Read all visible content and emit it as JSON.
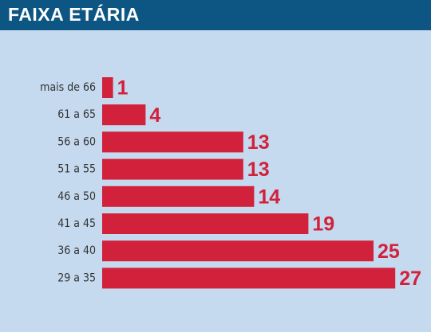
{
  "chart_data": {
    "type": "bar",
    "title": "FAIXA ETÁRIA",
    "categories": [
      "mais de 66",
      "61 a 65",
      "56 a 60",
      "51 a 55",
      "46 a 50",
      "41 a 45",
      "36 a 40",
      "29 a 35"
    ],
    "values": [
      1,
      4,
      13,
      13,
      14,
      19,
      25,
      27
    ],
    "color": "#d2213a"
  }
}
